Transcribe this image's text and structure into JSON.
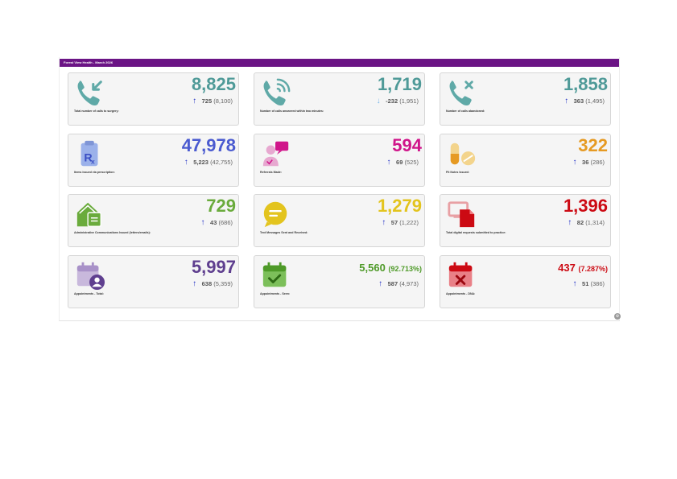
{
  "header": {
    "title": "Forest View Health - March 2026"
  },
  "colors": {
    "brand": "#6b1485",
    "teal": "#4f9a98",
    "blue": "#4b5bd0",
    "pink": "#d0158a",
    "orange": "#e69a23",
    "green": "#6aab3c",
    "yellow": "#e3c41e",
    "red": "#cc0a13",
    "purple": "#5f3f8f",
    "deepgreen": "#4e9a28",
    "up": "#1f2ec4",
    "down": "#79b7e9"
  },
  "cards": [
    {
      "value": "8,825",
      "change": "725",
      "prev": "(8,100)",
      "direction": "up",
      "label": "Total number of calls to surgery:",
      "icon": "phone-incoming-icon"
    },
    {
      "value": "1,719",
      "change": "-232",
      "prev": "(1,951)",
      "direction": "down",
      "label": "Number of calls answered within two minutes:",
      "icon": "phone-ringing-icon"
    },
    {
      "value": "1,858",
      "change": "363",
      "prev": "(1,495)",
      "direction": "up",
      "label": "Number of calls abandoned:",
      "icon": "phone-missed-icon"
    },
    {
      "value": "47,978",
      "change": "5,223",
      "prev": "(42,755)",
      "direction": "up",
      "label": "Items issued via prescription:",
      "icon": "prescription-icon"
    },
    {
      "value": "594",
      "change": "69",
      "prev": "(525)",
      "direction": "up",
      "label": "Referrals Made:",
      "icon": "referral-icon"
    },
    {
      "value": "322",
      "change": "36",
      "prev": "(286)",
      "direction": "up",
      "label": "Fit Notes Issued:",
      "icon": "pills-icon"
    },
    {
      "value": "729",
      "change": "43",
      "prev": "(686)",
      "direction": "up",
      "label": "Administrative Communications Issued (letters/emails):",
      "icon": "mail-home-icon"
    },
    {
      "value": "1,279",
      "change": "57",
      "prev": "(1,222)",
      "direction": "up",
      "label": "Text Messages Sent and Received:",
      "icon": "chat-bubble-icon"
    },
    {
      "value": "1,396",
      "change": "82",
      "prev": "(1,314)",
      "direction": "up",
      "label": "Total digital requests submitted to practice:",
      "icon": "digital-request-icon"
    },
    {
      "value": "5,997",
      "change": "638",
      "prev": "(5,359)",
      "direction": "up",
      "label": "Appointments - Total:",
      "icon": "calendar-user-icon"
    },
    {
      "value": "5,560",
      "pct": "(92.713%)",
      "change": "587",
      "prev": "(4,973)",
      "direction": "up",
      "label": "Appointments - Seen:",
      "icon": "calendar-check-icon"
    },
    {
      "value": "437",
      "pct": "(7.287%)",
      "change": "51",
      "prev": "(386)",
      "direction": "up",
      "label": "Appointments - DNA:",
      "icon": "calendar-x-icon"
    }
  ]
}
